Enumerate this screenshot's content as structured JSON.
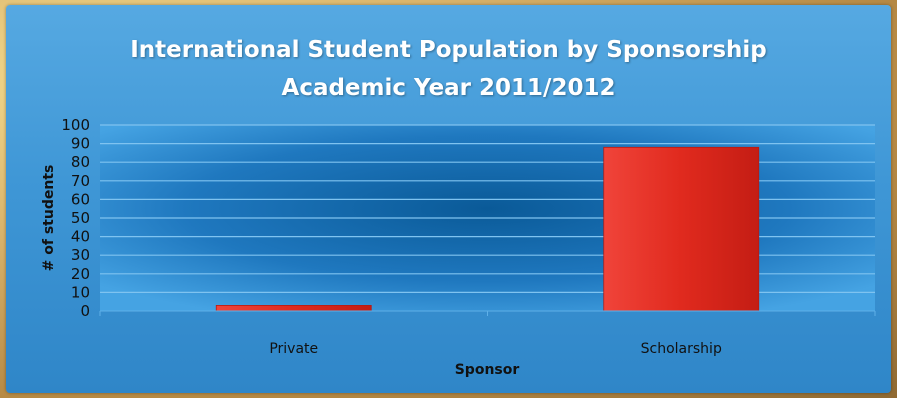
{
  "chart_data": {
    "type": "bar",
    "title": "International Student Population by Sponsorship",
    "subtitle": "Academic Year 2011/2012",
    "categories": [
      "Private",
      "Scholarship"
    ],
    "values": [
      3,
      88
    ],
    "xlabel": "Sponsor",
    "ylabel": "# of students",
    "ylim": [
      0,
      100
    ],
    "yticks": [
      "0",
      "10",
      "20",
      "30",
      "40",
      "50",
      "60",
      "70",
      "80",
      "90",
      "100"
    ],
    "grid": true,
    "legend": "none",
    "colors": {
      "bar": "#e0261c",
      "bar_edge": "#b71a12",
      "plot_dark": "#0b5f9e",
      "plot_light": "#3a9be0",
      "gridline": "#7fc3f0"
    }
  }
}
